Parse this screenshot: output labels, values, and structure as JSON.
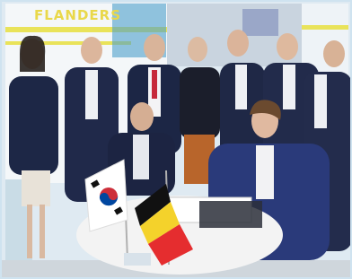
{
  "banner": {
    "text": "FLANDERS"
  }
}
